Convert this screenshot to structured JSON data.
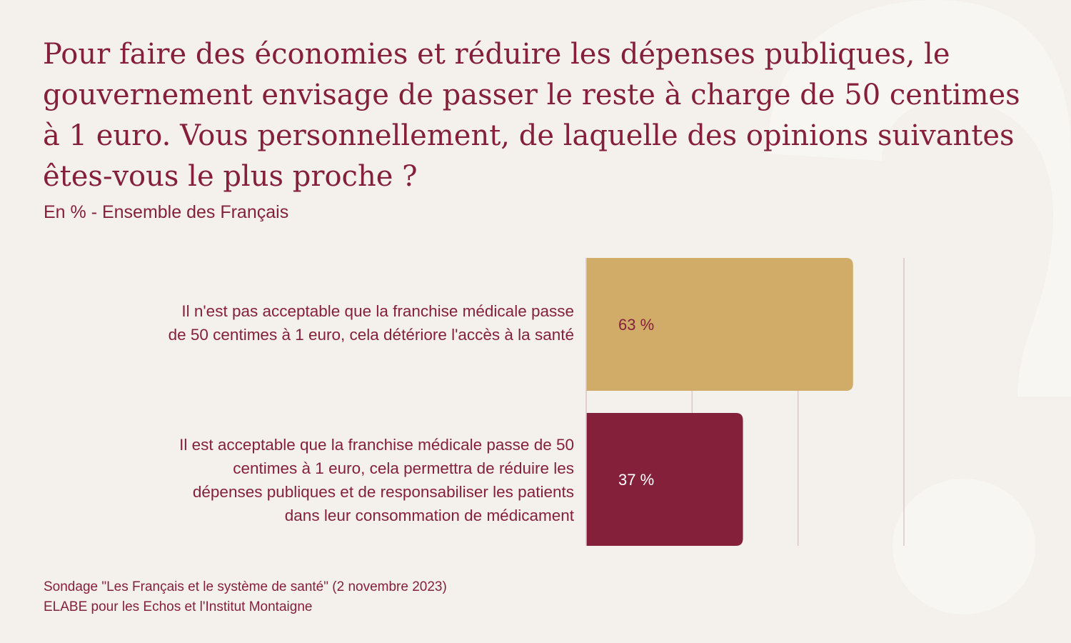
{
  "title": "Pour faire des économies et réduire les dépenses publiques, le gouvernement envisage de passer le reste à charge de 50 centimes à 1 euro. Vous personnellement, de laquelle des opinions suivantes êtes-vous le plus proche ?",
  "subtitle": "En % - Ensemble des Français",
  "source": {
    "line1": "Sondage \"Les Français et le système de santé\" (2 novembre 2023)",
    "line2": "ELABE pour les Echos et l'Institut Montaigne"
  },
  "chart_data": {
    "type": "bar",
    "orientation": "horizontal",
    "categories": [
      "Il n'est pas acceptable que la franchise médicale passe\nde 50 centimes à 1 euro, cela détériore l'accès à la santé",
      "Il est acceptable que la franchise médicale passe de 50\ncentimes à 1 euro, cela permettra de réduire les\ndépenses publiques et de responsabiliser les patients\ndans leur consommation de médicament"
    ],
    "values": [
      63,
      37
    ],
    "value_labels": [
      "63 %",
      "37 %"
    ],
    "colors": [
      "#d1ac69",
      "#85203a"
    ],
    "label_colors": [
      "#85203a",
      "#ffffff"
    ],
    "xlim": [
      0,
      75
    ],
    "gridlines_at": [
      25,
      50,
      75
    ],
    "grid": true,
    "legend": "none"
  },
  "colors": {
    "background": "#f4f1ec",
    "text": "#85203a",
    "gridline": "#dcc5c8",
    "watermark": "#f8f6f3"
  }
}
